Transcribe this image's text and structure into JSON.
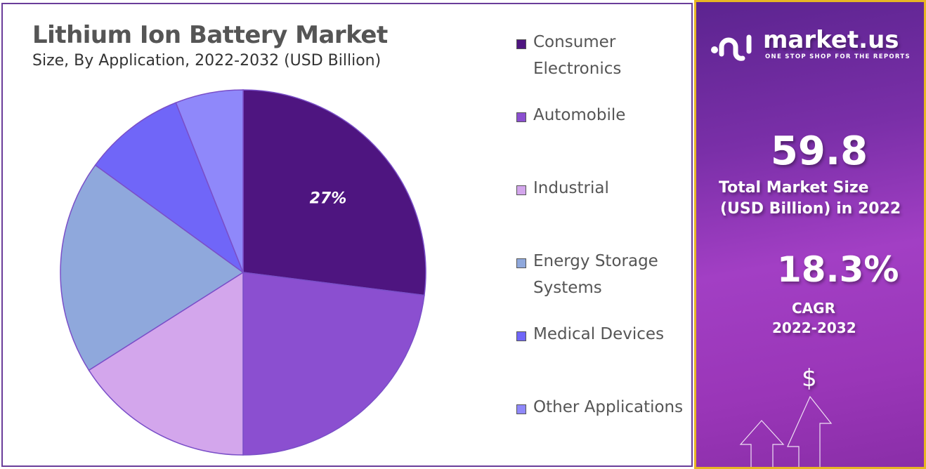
{
  "chart_data": {
    "type": "pie",
    "title": "Lithium Ion Battery Market",
    "subtitle": "Size, By Application, 2022-2032 (USD Billion)",
    "categories": [
      "Consumer Electronics",
      "Automobile",
      "Industrial",
      "Energy Storage Systems",
      "Medical Devices",
      "Other Applications"
    ],
    "values": [
      27,
      23,
      16,
      19,
      9,
      6
    ],
    "colors": [
      "#4e1580",
      "#8b4fd0",
      "#d3a6ec",
      "#8fa8dc",
      "#7066f8",
      "#8f88fa"
    ],
    "data_labels": [
      "27%",
      "",
      "",
      "",
      "",
      ""
    ],
    "legend_placement": "right",
    "start_angle": "top, clockwise"
  },
  "panel": {
    "brand": "market.us",
    "tagline": "ONE STOP SHOP FOR THE REPORTS",
    "market_size_value": "59.8",
    "market_size_label_1": "Total Market Size",
    "market_size_label_2": "(USD Billion) in 2022",
    "cagr_value": "18.3%",
    "cagr_label_1": "CAGR",
    "cagr_label_2": "2022-2032",
    "dollar_symbol": "$",
    "accent_border": "#e7b623"
  }
}
